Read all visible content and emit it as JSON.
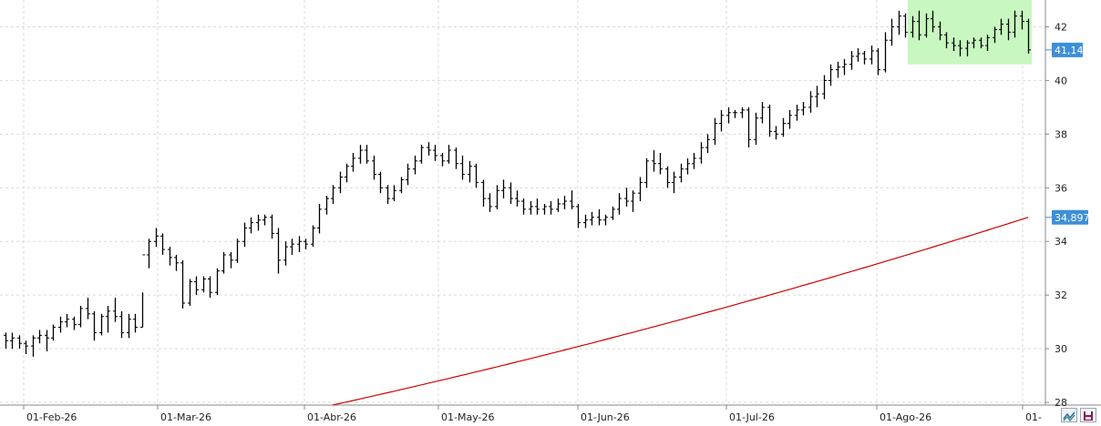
{
  "chart_data": {
    "type": "ohlc",
    "title": "",
    "x_tick_labels": [
      "01-Feb-26",
      "01-Mar-26",
      "01-Abr-26",
      "01-May-26",
      "01-Jun-26",
      "01-Jul-26",
      "01-Ago-26",
      "01-"
    ],
    "y_ticks": [
      28,
      30,
      32,
      34,
      36,
      38,
      40,
      42
    ],
    "ylim": [
      27.9,
      43.0
    ],
    "grid": true,
    "last_price_label": "41,14",
    "moving_average_label": "34,897",
    "colors": {
      "bars": "#000000",
      "moving_average": "#d00000",
      "highlight": "#c8f7c0",
      "price_tag": "#3d8fd8",
      "grid": "#d9d9d9",
      "axis": "#8a8a8a"
    },
    "bars": [
      [
        30.5,
        30.6,
        30.0,
        30.3
      ],
      [
        30.3,
        30.6,
        30.0,
        30.4
      ],
      [
        30.4,
        30.5,
        30.0,
        30.2
      ],
      [
        30.2,
        30.3,
        29.8,
        30.1
      ],
      [
        30.1,
        30.5,
        29.7,
        30.4
      ],
      [
        30.4,
        30.7,
        30.2,
        30.5
      ],
      [
        30.5,
        30.7,
        29.9,
        30.4
      ],
      [
        30.4,
        30.9,
        30.3,
        30.8
      ],
      [
        30.8,
        31.2,
        30.6,
        31.0
      ],
      [
        31.0,
        31.3,
        30.8,
        31.1
      ],
      [
        31.1,
        31.2,
        30.7,
        30.9
      ],
      [
        30.9,
        31.6,
        30.8,
        31.5
      ],
      [
        31.5,
        31.9,
        31.1,
        31.3
      ],
      [
        31.3,
        31.4,
        30.3,
        30.6
      ],
      [
        30.6,
        31.3,
        30.5,
        31.2
      ],
      [
        31.2,
        31.6,
        30.6,
        31.4
      ],
      [
        31.4,
        31.9,
        31.0,
        31.2
      ],
      [
        31.2,
        31.4,
        30.4,
        30.6
      ],
      [
        30.6,
        31.3,
        30.4,
        31.1
      ],
      [
        31.1,
        31.3,
        30.6,
        30.8
      ],
      [
        30.8,
        32.1,
        30.8,
        33.5
      ],
      [
        33.5,
        34.1,
        33.0,
        34.0
      ],
      [
        34.0,
        34.5,
        33.8,
        34.2
      ],
      [
        34.2,
        34.3,
        33.5,
        33.7
      ],
      [
        33.7,
        33.8,
        33.1,
        33.4
      ],
      [
        33.4,
        33.5,
        32.9,
        33.2
      ],
      [
        33.2,
        33.3,
        31.5,
        31.7
      ],
      [
        31.7,
        32.6,
        31.6,
        32.5
      ],
      [
        32.5,
        32.7,
        32.0,
        32.2
      ],
      [
        32.2,
        32.7,
        32.1,
        32.6
      ],
      [
        32.6,
        32.7,
        31.9,
        32.1
      ],
      [
        32.1,
        33.0,
        32.0,
        32.9
      ],
      [
        32.9,
        33.6,
        32.8,
        33.5
      ],
      [
        33.5,
        33.6,
        33.0,
        33.3
      ],
      [
        33.3,
        34.1,
        33.2,
        34.0
      ],
      [
        34.0,
        34.7,
        33.8,
        34.5
      ],
      [
        34.5,
        34.9,
        34.3,
        34.7
      ],
      [
        34.7,
        35.0,
        34.4,
        34.8
      ],
      [
        34.8,
        35.0,
        34.6,
        34.9
      ],
      [
        34.9,
        35.0,
        34.1,
        34.3
      ],
      [
        34.3,
        34.5,
        32.8,
        33.3
      ],
      [
        33.3,
        34.0,
        33.1,
        33.8
      ],
      [
        33.8,
        34.1,
        33.5,
        33.9
      ],
      [
        33.9,
        34.2,
        33.6,
        34.0
      ],
      [
        34.0,
        34.1,
        33.7,
        33.9
      ],
      [
        33.9,
        34.6,
        33.8,
        34.5
      ],
      [
        34.5,
        35.4,
        34.3,
        35.2
      ],
      [
        35.2,
        35.7,
        35.0,
        35.6
      ],
      [
        35.6,
        36.1,
        35.4,
        36.0
      ],
      [
        36.0,
        36.6,
        35.8,
        36.4
      ],
      [
        36.4,
        36.9,
        36.2,
        36.8
      ],
      [
        36.8,
        37.3,
        36.6,
        37.1
      ],
      [
        37.1,
        37.6,
        36.9,
        37.4
      ],
      [
        37.4,
        37.6,
        36.9,
        37.0
      ],
      [
        37.0,
        37.2,
        36.3,
        36.5
      ],
      [
        36.5,
        36.6,
        35.8,
        36.0
      ],
      [
        36.0,
        36.1,
        35.4,
        35.6
      ],
      [
        35.6,
        36.1,
        35.5,
        35.9
      ],
      [
        35.9,
        36.4,
        35.8,
        36.3
      ],
      [
        36.3,
        36.9,
        36.1,
        36.7
      ],
      [
        36.7,
        37.2,
        36.5,
        37.0
      ],
      [
        37.0,
        37.6,
        36.9,
        37.5
      ],
      [
        37.5,
        37.7,
        37.2,
        37.4
      ],
      [
        37.4,
        37.6,
        37.0,
        37.2
      ],
      [
        37.2,
        37.3,
        36.8,
        37.0
      ],
      [
        37.0,
        37.6,
        36.9,
        37.4
      ],
      [
        37.4,
        37.5,
        36.7,
        36.9
      ],
      [
        36.9,
        37.2,
        36.3,
        36.5
      ],
      [
        36.5,
        37.0,
        36.2,
        36.8
      ],
      [
        36.8,
        36.9,
        36.0,
        36.2
      ],
      [
        36.2,
        36.3,
        35.3,
        35.6
      ],
      [
        35.6,
        35.8,
        35.1,
        35.3
      ],
      [
        35.3,
        36.1,
        35.2,
        35.9
      ],
      [
        35.9,
        36.3,
        35.6,
        36.0
      ],
      [
        36.0,
        36.2,
        35.4,
        35.6
      ],
      [
        35.6,
        35.9,
        35.3,
        35.5
      ],
      [
        35.5,
        35.6,
        35.0,
        35.2
      ],
      [
        35.2,
        35.5,
        35.0,
        35.3
      ],
      [
        35.3,
        35.6,
        35.0,
        35.2
      ],
      [
        35.2,
        35.4,
        35.0,
        35.3
      ],
      [
        35.3,
        35.5,
        35.0,
        35.2
      ],
      [
        35.2,
        35.6,
        35.1,
        35.4
      ],
      [
        35.4,
        35.7,
        35.2,
        35.5
      ],
      [
        35.5,
        35.9,
        35.2,
        35.3
      ],
      [
        35.3,
        35.4,
        34.5,
        34.7
      ],
      [
        34.7,
        35.0,
        34.5,
        34.8
      ],
      [
        34.8,
        35.1,
        34.6,
        34.9
      ],
      [
        34.9,
        35.2,
        34.6,
        34.8
      ],
      [
        34.8,
        35.0,
        34.6,
        34.9
      ],
      [
        34.9,
        35.3,
        34.8,
        35.2
      ],
      [
        35.2,
        35.8,
        35.0,
        35.6
      ],
      [
        35.6,
        36.0,
        35.3,
        35.5
      ],
      [
        35.5,
        35.9,
        35.1,
        35.8
      ],
      [
        35.8,
        36.4,
        35.5,
        36.2
      ],
      [
        36.2,
        37.1,
        36.0,
        37.0
      ],
      [
        37.0,
        37.4,
        36.6,
        36.9
      ],
      [
        36.9,
        37.3,
        36.5,
        36.7
      ],
      [
        36.7,
        36.8,
        36.0,
        36.2
      ],
      [
        36.2,
        36.6,
        35.8,
        36.4
      ],
      [
        36.4,
        36.9,
        36.2,
        36.7
      ],
      [
        36.7,
        37.1,
        36.5,
        36.9
      ],
      [
        36.9,
        37.3,
        36.7,
        37.1
      ],
      [
        37.1,
        37.7,
        36.9,
        37.5
      ],
      [
        37.5,
        38.0,
        37.3,
        37.8
      ],
      [
        37.8,
        38.6,
        37.6,
        38.4
      ],
      [
        38.4,
        38.9,
        38.1,
        38.7
      ],
      [
        38.7,
        39.0,
        38.4,
        38.8
      ],
      [
        38.8,
        38.9,
        38.6,
        38.8
      ],
      [
        38.8,
        39.0,
        38.6,
        38.9
      ],
      [
        38.9,
        39.0,
        37.5,
        37.8
      ],
      [
        37.8,
        38.8,
        37.6,
        38.6
      ],
      [
        38.6,
        39.2,
        38.4,
        39.0
      ],
      [
        39.0,
        39.1,
        37.9,
        38.1
      ],
      [
        38.1,
        38.3,
        37.8,
        38.0
      ],
      [
        38.0,
        38.6,
        37.9,
        38.4
      ],
      [
        38.4,
        38.9,
        38.2,
        38.7
      ],
      [
        38.7,
        39.1,
        38.5,
        38.9
      ],
      [
        38.9,
        39.2,
        38.7,
        39.0
      ],
      [
        39.0,
        39.6,
        38.8,
        39.4
      ],
      [
        39.4,
        39.8,
        39.0,
        39.5
      ],
      [
        39.5,
        40.2,
        39.3,
        40.0
      ],
      [
        40.0,
        40.6,
        39.8,
        40.4
      ],
      [
        40.4,
        40.7,
        40.1,
        40.5
      ],
      [
        40.5,
        40.8,
        40.2,
        40.6
      ],
      [
        40.6,
        41.1,
        40.4,
        40.9
      ],
      [
        40.9,
        41.2,
        40.7,
        41.0
      ],
      [
        41.0,
        41.1,
        40.6,
        40.8
      ],
      [
        40.8,
        41.3,
        40.6,
        41.1
      ],
      [
        41.1,
        41.2,
        40.2,
        40.4
      ],
      [
        40.4,
        41.8,
        40.3,
        41.5
      ],
      [
        41.5,
        42.3,
        41.3,
        42.0
      ],
      [
        42.0,
        42.6,
        41.7,
        42.4
      ],
      [
        42.4,
        42.5,
        41.6,
        41.8
      ],
      [
        41.8,
        42.4,
        41.6,
        42.2
      ],
      [
        42.2,
        42.6,
        41.5,
        41.7
      ],
      [
        41.7,
        42.5,
        41.6,
        42.3
      ],
      [
        42.3,
        42.6,
        41.8,
        42.0
      ],
      [
        42.0,
        42.2,
        41.5,
        41.7
      ],
      [
        41.7,
        41.8,
        41.2,
        41.4
      ],
      [
        41.4,
        41.6,
        41.1,
        41.3
      ],
      [
        41.3,
        41.5,
        40.9,
        41.2
      ],
      [
        41.2,
        41.5,
        40.9,
        41.4
      ],
      [
        41.4,
        41.6,
        41.2,
        41.5
      ],
      [
        41.5,
        41.6,
        41.2,
        41.3
      ],
      [
        41.3,
        41.7,
        41.1,
        41.6
      ],
      [
        41.6,
        42.0,
        41.4,
        41.9
      ],
      [
        41.9,
        42.3,
        41.7,
        42.1
      ],
      [
        42.1,
        42.3,
        41.5,
        41.8
      ],
      [
        41.8,
        42.6,
        41.6,
        42.4
      ],
      [
        42.4,
        42.6,
        41.9,
        42.2
      ],
      [
        42.2,
        42.3,
        41.0,
        41.14
      ]
    ],
    "moving_average": {
      "start_index": 48,
      "start_value": 27.9,
      "end_value": 34.897
    },
    "highlight_region": {
      "from_index": 133,
      "to_index": 150,
      "y_from": 40.6,
      "y_to": 43.0
    }
  },
  "toolbar": {
    "icons": [
      "indicator-icon",
      "save-icon"
    ]
  }
}
